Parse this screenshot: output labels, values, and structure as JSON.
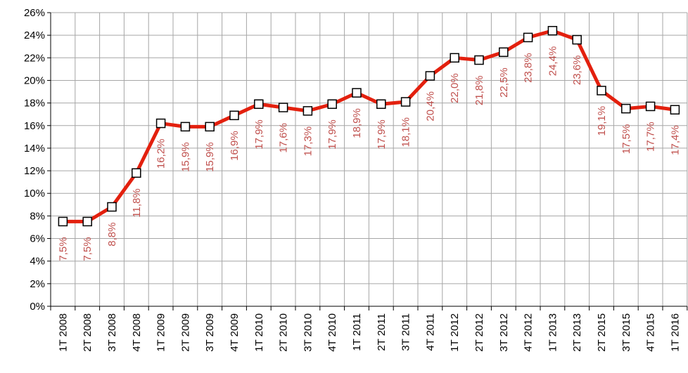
{
  "chart_data": {
    "type": "line",
    "categories": [
      "1T 2008",
      "2T 2008",
      "3T 2008",
      "4T 2008",
      "1T 2009",
      "2T 2009",
      "3T 2009",
      "4T 2009",
      "1T 2010",
      "2T 2010",
      "3T 2010",
      "4T 2010",
      "1T 2011",
      "2T 2011",
      "3T 2011",
      "4T 2011",
      "1T 2012",
      "2T 2012",
      "3T 2012",
      "4T 2012",
      "1T 2013",
      "2T 2013",
      "2T 2015",
      "3T 2015",
      "4T 2015",
      "1T 2016"
    ],
    "series": [
      {
        "color": "#e3200e",
        "values": [
          7.5,
          7.5,
          8.8,
          11.8,
          16.2,
          15.9,
          15.9,
          16.9,
          17.9,
          17.6,
          17.3,
          17.9,
          18.9,
          17.9,
          18.1,
          20.4,
          22.0,
          21.8,
          22.5,
          23.8,
          24.4,
          23.6,
          19.1,
          17.5,
          17.7,
          17.4
        ],
        "value_labels": [
          "7,5%",
          "7,5%",
          "8,8%",
          "11,8%",
          "16,2%",
          "15,9%",
          "15,9%",
          "16,9%",
          "17,9%",
          "17,6%",
          "17,3%",
          "17,9%",
          "18,9%",
          "17,9%",
          "18,1%",
          "20,4%",
          "22,0%",
          "21,8%",
          "22,5%",
          "23,8%",
          "24,4%",
          "23,6%",
          "19,1%",
          "17,5%",
          "17,7%",
          "17,4%"
        ]
      }
    ],
    "ylim": [
      0,
      26
    ],
    "yticks": [
      {
        "value": 0,
        "label": "0%"
      },
      {
        "value": 2,
        "label": "2%"
      },
      {
        "value": 4,
        "label": "4%"
      },
      {
        "value": 6,
        "label": "6%"
      },
      {
        "value": 8,
        "label": "8%"
      },
      {
        "value": 10,
        "label": "10%"
      },
      {
        "value": 12,
        "label": "12%"
      },
      {
        "value": 14,
        "label": "14%"
      },
      {
        "value": 16,
        "label": "16%"
      },
      {
        "value": 18,
        "label": "18%"
      },
      {
        "value": 20,
        "label": "20%"
      },
      {
        "value": 22,
        "label": "22%"
      },
      {
        "value": 24,
        "label": "24%"
      },
      {
        "value": 26,
        "label": "26%"
      }
    ],
    "grid": true,
    "value_label_color": "#c0504d"
  }
}
